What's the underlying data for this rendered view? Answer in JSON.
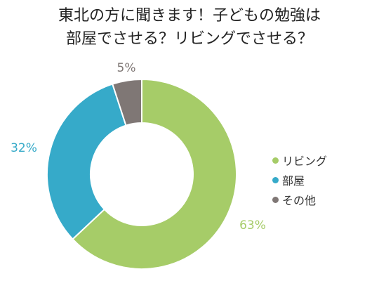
{
  "chart_data": {
    "type": "pie",
    "title": [
      "東北の方に聞きます！子どもの勉強は",
      "部屋でさせる？リビングでさせる？"
    ],
    "categories": [
      "リビング",
      "部屋",
      "その他"
    ],
    "values": [
      63,
      32,
      5
    ],
    "data_labels": [
      "63%",
      "32%",
      "5%"
    ],
    "colors": [
      "#a6cc68",
      "#36aac9",
      "#7f7775"
    ],
    "donut": true,
    "legend_position": "right"
  }
}
